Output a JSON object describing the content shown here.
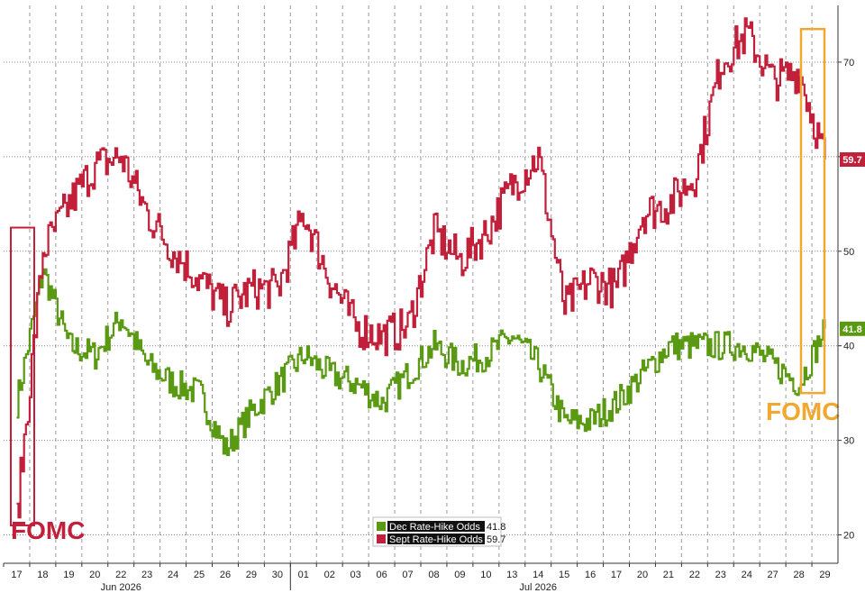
{
  "chart_data": {
    "type": "line",
    "x": [
      "17",
      "18",
      "19",
      "20",
      "22",
      "23",
      "24",
      "25",
      "26",
      "29",
      "30",
      "01",
      "02",
      "03",
      "06",
      "07",
      "08",
      "09",
      "10",
      "13",
      "14",
      "15",
      "16",
      "17",
      "20",
      "21",
      "22",
      "23",
      "24",
      "27",
      "28",
      "29"
    ],
    "months": [
      {
        "label": "Jun 2026",
        "at_index": 4
      },
      {
        "label": "Jul 2026",
        "at_index": 20
      }
    ],
    "ylim": [
      17,
      76
    ],
    "yticks": [
      20,
      30,
      40,
      50,
      60,
      70
    ],
    "series": [
      {
        "name": "Dec Rate-Hike Odds",
        "color": "#5a9a12",
        "last_value": "41.8",
        "values": [
          34,
          48,
          40,
          39,
          43,
          38,
          36,
          35,
          29,
          33,
          36,
          39,
          37,
          36,
          34,
          37,
          40,
          38,
          39,
          41,
          38,
          32,
          32,
          34,
          37,
          40,
          40,
          40,
          40,
          38,
          36,
          41.8
        ]
      },
      {
        "name": "Sept Rate-Hike Odds",
        "color": "#c21f3a",
        "last_value": "59.7",
        "values": [
          22,
          50,
          55,
          59,
          60,
          54,
          50,
          47,
          44,
          46,
          46,
          54,
          47,
          42,
          41,
          42,
          52,
          49,
          52,
          57,
          60,
          44,
          47,
          46,
          54,
          55,
          58,
          70,
          73,
          68,
          69,
          59.7
        ]
      }
    ],
    "annotations": [
      {
        "text": "FOMC",
        "color": "#c21f3a"
      },
      {
        "text": "FOMC",
        "color": "#f0a830"
      }
    ]
  }
}
